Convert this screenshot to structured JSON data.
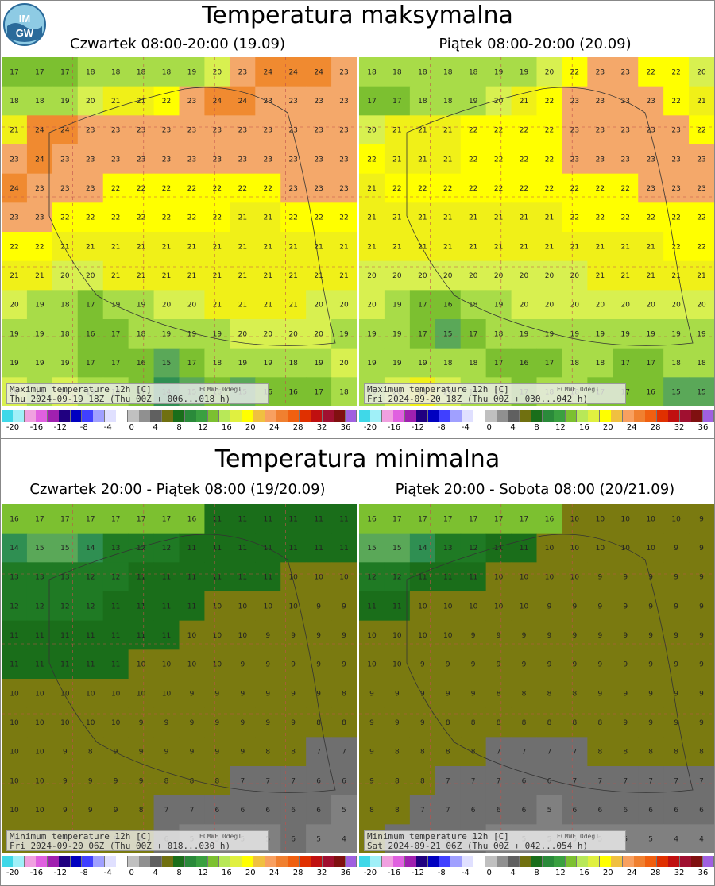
{
  "logo": {
    "text": "IMGW"
  },
  "sections": [
    {
      "title": "Temperatura maksymalna",
      "panels": [
        {
          "title": "Czwartek 08:00-20:00 (19.09)",
          "overlay_line1": "Maximum temperature 12h [C]",
          "overlay_source": "ECMWF 0deg1",
          "overlay_line2": "Thu 2024-09-19 18Z (Thu 00Z + 006...018 h)",
          "values_rows": [
            [
              "17",
              "17",
              "17",
              "18",
              "18",
              "18",
              "18",
              "19",
              "20",
              "23",
              "24",
              "24",
              "24",
              "23"
            ],
            [
              "18",
              "18",
              "19",
              "20",
              "21",
              "21",
              "22",
              "23",
              "24",
              "24",
              "23",
              "23",
              "23",
              "23"
            ],
            [
              "21",
              "24",
              "24",
              "23",
              "23",
              "23",
              "23",
              "23",
              "23",
              "23",
              "23",
              "23",
              "23",
              "23"
            ],
            [
              "23",
              "24",
              "23",
              "23",
              "23",
              "23",
              "23",
              "23",
              "23",
              "23",
              "23",
              "23",
              "23",
              "23"
            ],
            [
              "24",
              "23",
              "23",
              "23",
              "22",
              "22",
              "22",
              "22",
              "22",
              "22",
              "22",
              "23",
              "23",
              "23"
            ],
            [
              "23",
              "23",
              "22",
              "22",
              "22",
              "22",
              "22",
              "22",
              "22",
              "21",
              "21",
              "22",
              "22",
              "22"
            ],
            [
              "22",
              "22",
              "21",
              "21",
              "21",
              "21",
              "21",
              "21",
              "21",
              "21",
              "21",
              "21",
              "21",
              "21"
            ],
            [
              "21",
              "21",
              "20",
              "20",
              "21",
              "21",
              "21",
              "21",
              "21",
              "21",
              "21",
              "21",
              "21",
              "21"
            ],
            [
              "20",
              "19",
              "18",
              "17",
              "19",
              "19",
              "20",
              "20",
              "21",
              "21",
              "21",
              "21",
              "20",
              "20"
            ],
            [
              "19",
              "19",
              "18",
              "16",
              "17",
              "18",
              "19",
              "19",
              "19",
              "20",
              "20",
              "20",
              "20",
              "19"
            ],
            [
              "19",
              "19",
              "19",
              "17",
              "17",
              "16",
              "15",
              "17",
              "18",
              "19",
              "19",
              "18",
              "19",
              "20"
            ],
            [
              "20",
              "19",
              "20",
              "19",
              "18",
              "17",
              "14",
              "15",
              "16",
              "15",
              "16",
              "16",
              "17",
              "18"
            ]
          ]
        },
        {
          "title": "Piątek 08:00-20:00 (20.09)",
          "overlay_line1": "Maximum temperature 12h [C]",
          "overlay_source": "ECMWF 0deg1",
          "overlay_line2": "Fri 2024-09-20 18Z (Thu 00Z + 030...042 h)",
          "values_rows": [
            [
              "18",
              "18",
              "18",
              "18",
              "18",
              "19",
              "19",
              "20",
              "22",
              "23",
              "23",
              "22",
              "22",
              "20"
            ],
            [
              "17",
              "17",
              "18",
              "18",
              "19",
              "20",
              "21",
              "22",
              "23",
              "23",
              "23",
              "23",
              "22",
              "21"
            ],
            [
              "20",
              "21",
              "21",
              "21",
              "22",
              "22",
              "22",
              "22",
              "23",
              "23",
              "23",
              "23",
              "23",
              "22"
            ],
            [
              "22",
              "21",
              "21",
              "21",
              "22",
              "22",
              "22",
              "22",
              "23",
              "23",
              "23",
              "23",
              "23",
              "23"
            ],
            [
              "21",
              "22",
              "22",
              "22",
              "22",
              "22",
              "22",
              "22",
              "22",
              "22",
              "22",
              "23",
              "23",
              "23"
            ],
            [
              "21",
              "21",
              "21",
              "21",
              "21",
              "21",
              "21",
              "21",
              "22",
              "22",
              "22",
              "22",
              "22",
              "22"
            ],
            [
              "21",
              "21",
              "21",
              "21",
              "21",
              "21",
              "21",
              "21",
              "21",
              "21",
              "21",
              "21",
              "22",
              "22"
            ],
            [
              "20",
              "20",
              "20",
              "20",
              "20",
              "20",
              "20",
              "20",
              "20",
              "21",
              "21",
              "21",
              "21",
              "21"
            ],
            [
              "20",
              "19",
              "17",
              "16",
              "18",
              "19",
              "20",
              "20",
              "20",
              "20",
              "20",
              "20",
              "20",
              "20"
            ],
            [
              "19",
              "19",
              "17",
              "15",
              "17",
              "18",
              "19",
              "19",
              "19",
              "19",
              "19",
              "19",
              "19",
              "19"
            ],
            [
              "19",
              "19",
              "19",
              "18",
              "18",
              "17",
              "16",
              "17",
              "18",
              "18",
              "17",
              "17",
              "18",
              "18"
            ],
            [
              "19",
              "20",
              "21",
              "20",
              "19",
              "18",
              "17",
              "18",
              "18",
              "17",
              "17",
              "16",
              "15",
              "15"
            ]
          ]
        }
      ]
    },
    {
      "title": "Temperatura minimalna",
      "panels": [
        {
          "title": "Czwartek 20:00 - Piątek 08:00 (19/20.09)",
          "overlay_line1": "Minimum temperature 12h [C]",
          "overlay_source": "ECMWF 0deg1",
          "overlay_line2": "Fri 2024-09-20 06Z (Thu 00Z + 018...030 h)",
          "values_rows": [
            [
              "16",
              "17",
              "17",
              "17",
              "17",
              "17",
              "17",
              "16",
              "11",
              "11",
              "11",
              "11",
              "11",
              "11"
            ],
            [
              "14",
              "15",
              "15",
              "14",
              "13",
              "12",
              "12",
              "11",
              "11",
              "11",
              "11",
              "11",
              "11",
              "11"
            ],
            [
              "13",
              "13",
              "13",
              "12",
              "12",
              "11",
              "11",
              "11",
              "11",
              "11",
              "11",
              "10",
              "10",
              "10"
            ],
            [
              "12",
              "12",
              "12",
              "12",
              "11",
              "11",
              "11",
              "11",
              "10",
              "10",
              "10",
              "10",
              "9",
              "9"
            ],
            [
              "11",
              "11",
              "11",
              "11",
              "11",
              "11",
              "11",
              "10",
              "10",
              "10",
              "9",
              "9",
              "9",
              "9"
            ],
            [
              "11",
              "11",
              "11",
              "11",
              "11",
              "10",
              "10",
              "10",
              "10",
              "9",
              "9",
              "9",
              "9",
              "9"
            ],
            [
              "10",
              "10",
              "10",
              "10",
              "10",
              "10",
              "10",
              "9",
              "9",
              "9",
              "9",
              "9",
              "9",
              "8"
            ],
            [
              "10",
              "10",
              "10",
              "10",
              "10",
              "9",
              "9",
              "9",
              "9",
              "9",
              "9",
              "9",
              "8",
              "8"
            ],
            [
              "10",
              "10",
              "9",
              "8",
              "9",
              "9",
              "9",
              "9",
              "9",
              "9",
              "8",
              "8",
              "7",
              "7"
            ],
            [
              "10",
              "10",
              "9",
              "9",
              "9",
              "9",
              "8",
              "8",
              "8",
              "7",
              "7",
              "7",
              "6",
              "6"
            ],
            [
              "10",
              "10",
              "9",
              "9",
              "9",
              "8",
              "7",
              "7",
              "6",
              "6",
              "6",
              "6",
              "6",
              "5"
            ],
            [
              "10",
              "10",
              "9",
              "9",
              "9",
              "8",
              "6",
              "5",
              "5",
              "5",
              "5",
              "6",
              "5",
              "4"
            ]
          ]
        },
        {
          "title": "Piątek 20:00 - Sobota 08:00 (20/21.09)",
          "overlay_line1": "Minimum temperature 12h [C]",
          "overlay_source": "ECMWF 0deg1",
          "overlay_line2": "Sat 2024-09-21 06Z (Thu 00Z + 042...054 h)",
          "values_rows": [
            [
              "16",
              "17",
              "17",
              "17",
              "17",
              "17",
              "17",
              "16",
              "10",
              "10",
              "10",
              "10",
              "10",
              "9"
            ],
            [
              "15",
              "15",
              "14",
              "13",
              "12",
              "11",
              "11",
              "10",
              "10",
              "10",
              "10",
              "10",
              "9",
              "9"
            ],
            [
              "12",
              "12",
              "11",
              "11",
              "11",
              "10",
              "10",
              "10",
              "10",
              "9",
              "9",
              "9",
              "9",
              "9"
            ],
            [
              "11",
              "11",
              "10",
              "10",
              "10",
              "10",
              "10",
              "9",
              "9",
              "9",
              "9",
              "9",
              "9",
              "9"
            ],
            [
              "10",
              "10",
              "10",
              "10",
              "9",
              "9",
              "9",
              "9",
              "9",
              "9",
              "9",
              "9",
              "9",
              "9"
            ],
            [
              "10",
              "10",
              "9",
              "9",
              "9",
              "9",
              "9",
              "9",
              "9",
              "9",
              "9",
              "9",
              "9",
              "9"
            ],
            [
              "9",
              "9",
              "9",
              "9",
              "9",
              "8",
              "8",
              "8",
              "8",
              "9",
              "9",
              "9",
              "9",
              "9"
            ],
            [
              "9",
              "9",
              "9",
              "8",
              "8",
              "8",
              "8",
              "8",
              "8",
              "8",
              "9",
              "9",
              "9",
              "9"
            ],
            [
              "9",
              "8",
              "8",
              "8",
              "8",
              "7",
              "7",
              "7",
              "7",
              "8",
              "8",
              "8",
              "8",
              "8"
            ],
            [
              "9",
              "8",
              "8",
              "7",
              "7",
              "7",
              "6",
              "6",
              "7",
              "7",
              "7",
              "7",
              "7",
              "7"
            ],
            [
              "8",
              "8",
              "7",
              "7",
              "6",
              "6",
              "6",
              "5",
              "6",
              "6",
              "6",
              "6",
              "6",
              "6"
            ],
            [
              "8",
              "7",
              "7",
              "6",
              "6",
              "5",
              "5",
              "5",
              "5",
              "5",
              "5",
              "5",
              "4",
              "4"
            ]
          ]
        }
      ]
    }
  ],
  "scale": {
    "tick_labels": [
      "-20",
      "-16",
      "-12",
      "-8",
      "-4",
      "0",
      "4",
      "8",
      "12",
      "16",
      "20",
      "24",
      "28",
      "32",
      "36"
    ],
    "colors": [
      "#3fd8e8",
      "#a0f0f8",
      "#f0a0e0",
      "#e060e0",
      "#a020b0",
      "#200080",
      "#0000c0",
      "#4040ff",
      "#a0a0ff",
      "#e0e0ff",
      "#ffffff",
      "#c0c0c0",
      "#909090",
      "#606060",
      "#707010",
      "#1a6e1a",
      "#2a8a3a",
      "#3aa040",
      "#7cc030",
      "#b8e858",
      "#e0f040",
      "#ffff00",
      "#f0c040",
      "#f8a060",
      "#f08030",
      "#f06010",
      "#e03000",
      "#c01010",
      "#a01030",
      "#801010",
      "#a060e0"
    ]
  }
}
